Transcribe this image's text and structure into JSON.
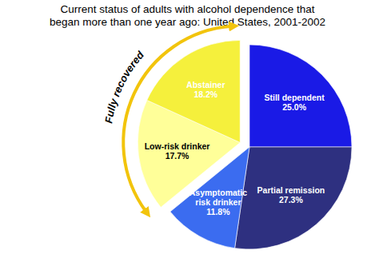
{
  "chart_data": {
    "type": "pie",
    "title": "Current status of adults with alcohol dependence that began more than one year ago: United States, 2001-2002",
    "categories": [
      "Still dependent",
      "Partial remission",
      "Asymptomatic risk drinker",
      "Low-risk drinker",
      "Abstainer"
    ],
    "values": [
      25.0,
      27.3,
      11.8,
      17.7,
      18.2
    ],
    "value_labels": [
      "25.0%",
      "27.3%",
      "11.8%",
      "17.7%",
      "18.2%"
    ],
    "colors": [
      "#1a1ae6",
      "#2e3080",
      "#3b6cf0",
      "#ffff99",
      "#f5f03c"
    ],
    "data_labels": true,
    "annotations": [
      "Fully recovered"
    ]
  }
}
